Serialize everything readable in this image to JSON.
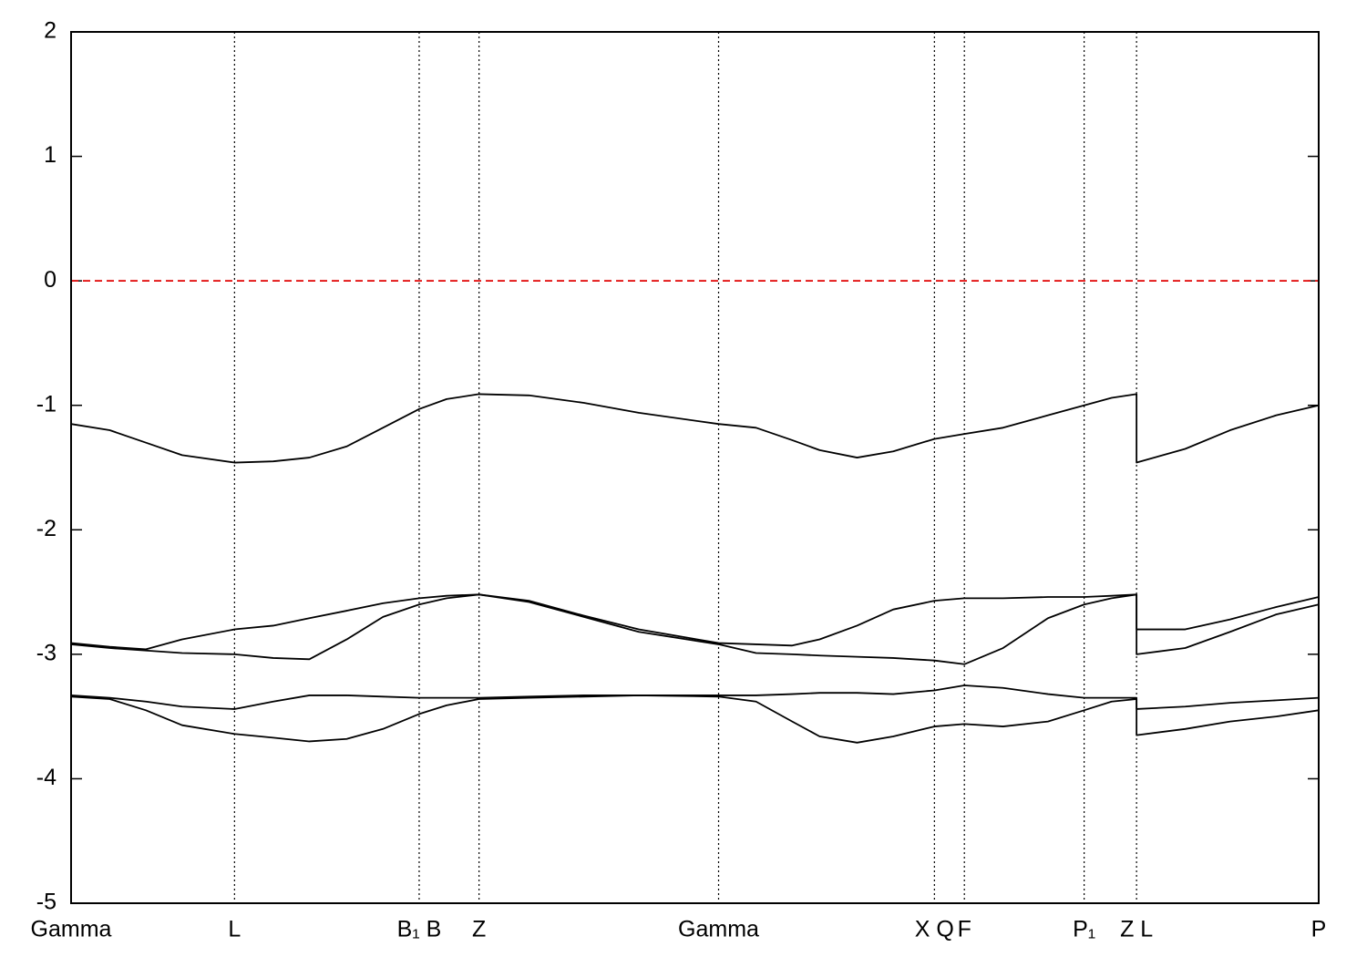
{
  "chart_data": {
    "type": "line",
    "x": [
      0,
      0.031,
      0.06,
      0.089,
      0.131,
      0.162,
      0.191,
      0.221,
      0.25,
      0.279,
      0.301,
      0.327,
      0.367,
      0.411,
      0.455,
      0.519,
      0.549,
      0.578,
      0.6,
      0.63,
      0.659,
      0.692,
      0.716,
      0.747,
      0.783,
      0.812,
      0.834,
      0.854,
      0.854,
      0.893,
      0.929,
      0.966,
      1.0
    ],
    "series": [
      {
        "color": "#000000",
        "values": [
          -1.15,
          -1.2,
          -1.3,
          -1.4,
          -1.46,
          -1.45,
          -1.42,
          -1.33,
          -1.18,
          -1.03,
          -0.95,
          -0.91,
          -0.92,
          -0.98,
          -1.06,
          -1.15,
          -1.18,
          -1.28,
          -1.36,
          -1.42,
          -1.37,
          -1.27,
          -1.23,
          -1.18,
          -1.08,
          -1.0,
          -0.94,
          -0.91,
          -1.46,
          -1.35,
          -1.2,
          -1.08,
          -1.0
        ]
      },
      {
        "color": "#000000",
        "values": [
          -2.91,
          -2.94,
          -2.96,
          -2.88,
          -2.8,
          -2.77,
          -2.71,
          -2.65,
          -2.59,
          -2.55,
          -2.53,
          -2.52,
          -2.57,
          -2.69,
          -2.8,
          -2.91,
          -2.92,
          -2.93,
          -2.88,
          -2.77,
          -2.64,
          -2.57,
          -2.55,
          -2.55,
          -2.54,
          -2.54,
          -2.53,
          -2.52,
          -2.8,
          -2.8,
          -2.72,
          -2.62,
          -2.54
        ]
      },
      {
        "color": "#000000",
        "values": [
          -2.92,
          -2.95,
          -2.97,
          -2.99,
          -3.0,
          -3.03,
          -3.04,
          -2.88,
          -2.7,
          -2.6,
          -2.55,
          -2.52,
          -2.58,
          -2.7,
          -2.82,
          -2.92,
          -2.99,
          -3.0,
          -3.01,
          -3.02,
          -3.03,
          -3.05,
          -3.08,
          -2.95,
          -2.71,
          -2.6,
          -2.55,
          -2.52,
          -3.0,
          -2.95,
          -2.82,
          -2.68,
          -2.6
        ]
      },
      {
        "color": "#000000",
        "values": [
          -3.33,
          -3.35,
          -3.38,
          -3.42,
          -3.44,
          -3.38,
          -3.33,
          -3.33,
          -3.34,
          -3.35,
          -3.35,
          -3.35,
          -3.34,
          -3.33,
          -3.33,
          -3.33,
          -3.33,
          -3.32,
          -3.31,
          -3.31,
          -3.32,
          -3.29,
          -3.25,
          -3.27,
          -3.32,
          -3.35,
          -3.35,
          -3.35,
          -3.44,
          -3.42,
          -3.39,
          -3.37,
          -3.35
        ]
      },
      {
        "color": "#000000",
        "values": [
          -3.34,
          -3.36,
          -3.45,
          -3.57,
          -3.64,
          -3.67,
          -3.7,
          -3.68,
          -3.6,
          -3.48,
          -3.41,
          -3.36,
          -3.35,
          -3.34,
          -3.33,
          -3.34,
          -3.38,
          -3.54,
          -3.66,
          -3.71,
          -3.66,
          -3.58,
          -3.56,
          -3.58,
          -3.54,
          -3.45,
          -3.38,
          -3.36,
          -3.65,
          -3.6,
          -3.54,
          -3.5,
          -3.45
        ]
      }
    ],
    "xlim": [
      0,
      1.0
    ],
    "xticks": [
      {
        "value": 0,
        "label": "Gamma"
      },
      {
        "value": 0.131,
        "label": "L"
      },
      {
        "value": 0.279,
        "label": "B₁ B"
      },
      {
        "value": 0.327,
        "label": "Z"
      },
      {
        "value": 0.519,
        "label": "Gamma"
      },
      {
        "value": 0.692,
        "label": "X Q"
      },
      {
        "value": 0.716,
        "label": "F"
      },
      {
        "value": 0.812,
        "label": "P₁"
      },
      {
        "value": 0.854,
        "label": "Z L"
      },
      {
        "value": 1.0,
        "label": "P"
      }
    ],
    "ylim": [
      -5,
      2
    ],
    "yticks": [
      -5,
      -4,
      -3,
      -2,
      -1,
      0,
      1,
      2
    ],
    "reference_line": {
      "value": 0,
      "color": "#e00000"
    }
  }
}
